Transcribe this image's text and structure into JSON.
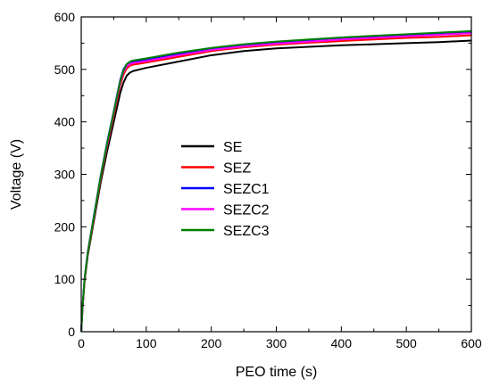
{
  "chart_data": {
    "type": "line",
    "xlabel": "PEO time (s)",
    "ylabel": "Voltage (V)",
    "xlim": [
      0,
      600
    ],
    "ylim": [
      0,
      600
    ],
    "x_ticks": [
      0,
      100,
      200,
      300,
      400,
      500,
      600
    ],
    "y_ticks": [
      0,
      100,
      200,
      300,
      400,
      500,
      600
    ],
    "grid": false,
    "legend_position": "center-left",
    "series": [
      {
        "name": "SE",
        "color": "#000000",
        "x": [
          0,
          2,
          5,
          10,
          20,
          30,
          40,
          50,
          60,
          65,
          70,
          75,
          80,
          90,
          100,
          150,
          200,
          250,
          300,
          350,
          400,
          450,
          500,
          550,
          600
        ],
        "y": [
          0,
          45,
          95,
          145,
          215,
          285,
          345,
          400,
          455,
          475,
          488,
          494,
          497,
          500,
          503,
          515,
          527,
          535,
          540,
          543,
          546,
          548,
          550,
          552,
          555
        ]
      },
      {
        "name": "SEZ",
        "color": "#ff0000",
        "x": [
          0,
          2,
          5,
          10,
          20,
          30,
          40,
          50,
          60,
          65,
          70,
          75,
          80,
          90,
          100,
          150,
          200,
          250,
          300,
          350,
          400,
          450,
          500,
          550,
          600
        ],
        "y": [
          0,
          45,
          95,
          148,
          220,
          292,
          355,
          412,
          470,
          490,
          502,
          507,
          509,
          511,
          513,
          524,
          535,
          542,
          547,
          551,
          554,
          557,
          560,
          562,
          565
        ]
      },
      {
        "name": "SEZC1",
        "color": "#0000ff",
        "x": [
          0,
          2,
          5,
          10,
          20,
          30,
          40,
          50,
          60,
          65,
          70,
          75,
          80,
          90,
          100,
          150,
          200,
          250,
          300,
          350,
          400,
          450,
          500,
          550,
          600
        ],
        "y": [
          0,
          48,
          100,
          152,
          225,
          298,
          362,
          420,
          480,
          500,
          510,
          514,
          515,
          517,
          519,
          530,
          540,
          547,
          552,
          556,
          560,
          563,
          566,
          569,
          572
        ]
      },
      {
        "name": "SEZC2",
        "color": "#ff00ff",
        "x": [
          0,
          2,
          5,
          10,
          20,
          30,
          40,
          50,
          60,
          65,
          70,
          75,
          80,
          90,
          100,
          150,
          200,
          250,
          300,
          350,
          400,
          450,
          500,
          550,
          600
        ],
        "y": [
          0,
          46,
          97,
          150,
          222,
          295,
          358,
          416,
          475,
          495,
          506,
          510,
          512,
          514,
          516,
          527,
          537,
          544,
          549,
          553,
          557,
          560,
          563,
          566,
          569
        ]
      },
      {
        "name": "SEZC3",
        "color": "#008000",
        "x": [
          0,
          2,
          5,
          10,
          20,
          30,
          40,
          50,
          60,
          65,
          70,
          75,
          80,
          90,
          100,
          150,
          200,
          250,
          300,
          350,
          400,
          450,
          500,
          550,
          600
        ],
        "y": [
          0,
          47,
          98,
          150,
          223,
          296,
          360,
          418,
          478,
          498,
          510,
          515,
          517,
          519,
          521,
          532,
          541,
          548,
          553,
          557,
          561,
          564,
          567,
          570,
          573
        ]
      }
    ]
  }
}
